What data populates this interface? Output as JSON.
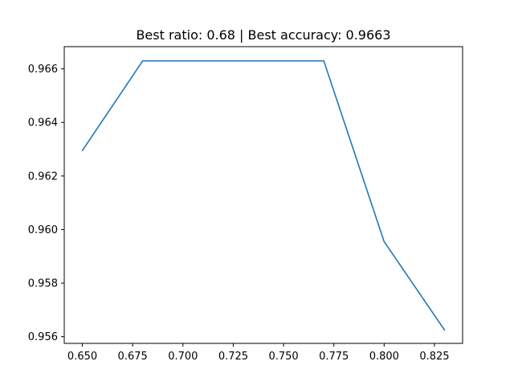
{
  "chart_data": {
    "type": "line",
    "title": "Best ratio: 0.68 | Best accuracy: 0.9663",
    "xlabel": "",
    "ylabel": "",
    "xlim": [
      0.641,
      0.839
    ],
    "ylim": [
      0.95575,
      0.96683
    ],
    "x_ticks": [
      0.65,
      0.675,
      0.7,
      0.725,
      0.75,
      0.775,
      0.8,
      0.825
    ],
    "x_tick_labels": [
      "0.650",
      "0.675",
      "0.700",
      "0.725",
      "0.750",
      "0.775",
      "0.800",
      "0.825"
    ],
    "y_ticks": [
      0.956,
      0.958,
      0.96,
      0.962,
      0.964,
      0.966
    ],
    "y_tick_labels": [
      "0.956",
      "0.958",
      "0.960",
      "0.962",
      "0.964",
      "0.966"
    ],
    "grid": false,
    "series": [
      {
        "color": "#1f77b4",
        "x": [
          0.65,
          0.68,
          0.71,
          0.74,
          0.77,
          0.8,
          0.83
        ],
        "y": [
          0.96295,
          0.9663,
          0.9663,
          0.9663,
          0.9663,
          0.95955,
          0.95625
        ]
      }
    ]
  }
}
